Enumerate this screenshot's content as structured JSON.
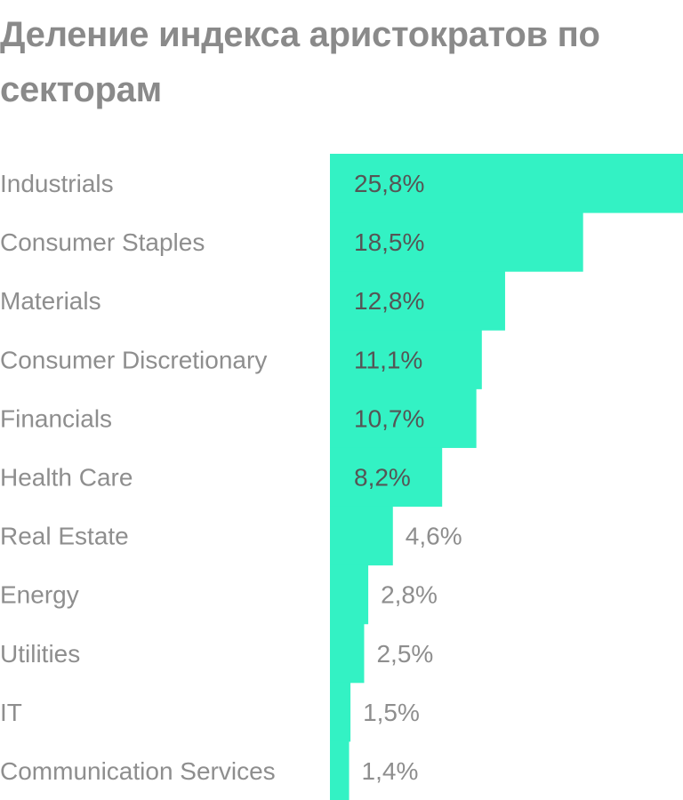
{
  "title": "Деление индекса аристократов по секторам",
  "colors": {
    "bar": "#33f2c4",
    "title": "#8a8a8a",
    "label": "#8e8e8e",
    "value_inside": "#555555",
    "value_outside": "#8e8e8e"
  },
  "chart_data": {
    "type": "bar",
    "orientation": "horizontal",
    "categories": [
      "Industrials",
      "Consumer Staples",
      "Materials",
      "Consumer Discretionary",
      "Financials",
      "Health Care",
      "Real Estate",
      "Energy",
      "Utilities",
      "IT",
      "Communication Services"
    ],
    "values": [
      25.8,
      18.5,
      12.8,
      11.1,
      10.7,
      8.2,
      4.6,
      2.8,
      2.5,
      1.5,
      1.4
    ],
    "value_labels": [
      "25,8%",
      "18,5%",
      "12,8%",
      "11,1%",
      "10,7%",
      "8,2%",
      "4,6%",
      "2,8%",
      "2,5%",
      "1,5%",
      "1,4%"
    ],
    "unit": "%",
    "xlim": [
      0,
      25.8
    ]
  }
}
